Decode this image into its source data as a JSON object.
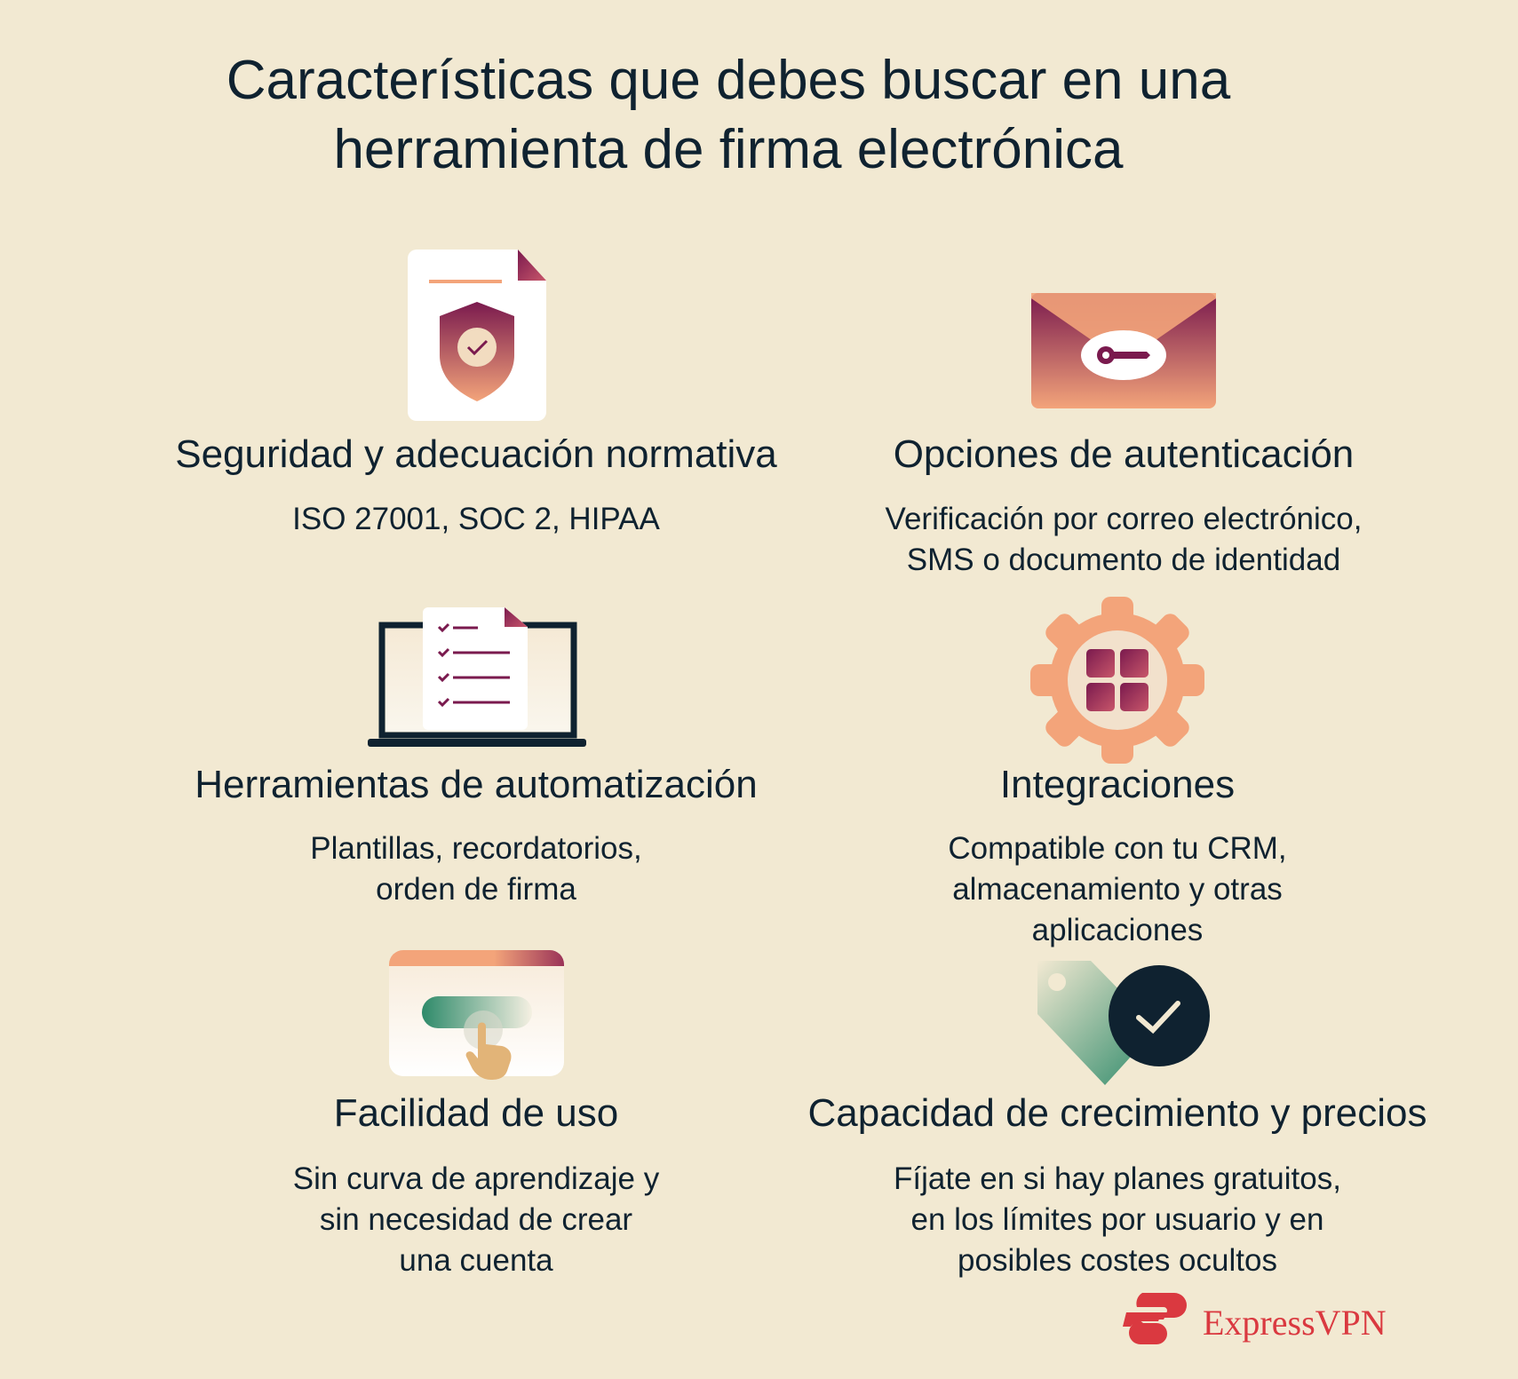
{
  "title": {
    "line1": "Características que debes buscar en una",
    "line2": "herramienta de firma electrónica"
  },
  "features": [
    {
      "icon": "shield-document-icon",
      "heading": "Seguridad y adecuación normativa",
      "lines": [
        "ISO 27001, SOC 2, HIPAA"
      ]
    },
    {
      "icon": "envelope-key-icon",
      "heading": "Opciones de autenticación",
      "lines": [
        "Verificación por correo electrónico,",
        "SMS o documento de identidad"
      ]
    },
    {
      "icon": "laptop-checklist-icon",
      "heading": "Herramientas de automatización",
      "lines": [
        "Plantillas, recordatorios,",
        "orden de firma"
      ]
    },
    {
      "icon": "gear-apps-icon",
      "heading": "Integraciones",
      "lines": [
        "Compatible con tu CRM,",
        "almacenamiento y otras",
        "aplicaciones"
      ]
    },
    {
      "icon": "window-click-icon",
      "heading": "Facilidad de uso",
      "lines": [
        "Sin curva de aprendizaje y",
        "sin necesidad de crear",
        "una cuenta"
      ]
    },
    {
      "icon": "price-tag-check-icon",
      "heading": "Capacidad de crecimiento y precios",
      "lines": [
        "Fíjate en si hay planes gratuitos,",
        "en los límites por usuario y en",
        "posibles costes ocultos"
      ]
    }
  ],
  "brand": {
    "name": "ExpressVPN",
    "color": "#da3940"
  },
  "colors": {
    "background": "#f2e9d2",
    "text": "#0f2230",
    "accent_plum": "#7a1a4e",
    "accent_peach": "#f3a47a",
    "accent_green": "#2e8a6a"
  }
}
